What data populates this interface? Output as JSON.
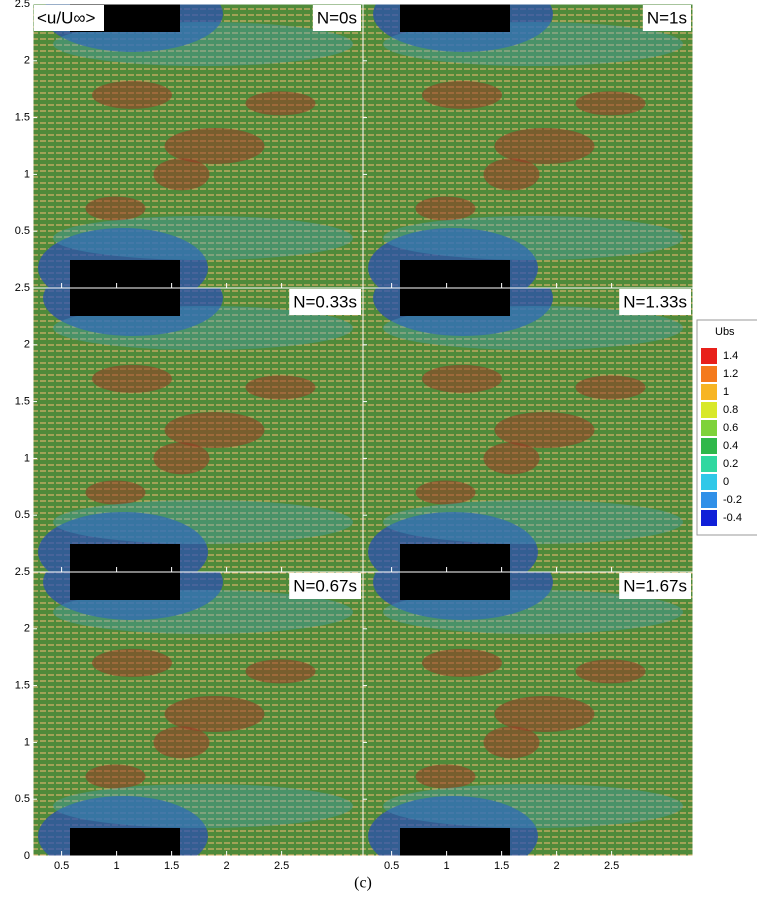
{
  "chart_data": {
    "type": "vector-field",
    "annotation": "<u/U∞>",
    "caption": "(c)",
    "panels": [
      {
        "label": "N=0s"
      },
      {
        "label": "N=1s"
      },
      {
        "label": "N=0.33s"
      },
      {
        "label": "N=1.33s"
      },
      {
        "label": "N=0.67s"
      },
      {
        "label": "N=1.67s"
      }
    ],
    "xlim": [
      0.24,
      3.24
    ],
    "xticks": [
      0.5,
      1,
      1.5,
      2,
      2.5
    ],
    "ylim": [
      0,
      2.5
    ],
    "yticks": [
      0,
      0.5,
      1,
      1.5,
      2,
      2.5
    ],
    "colorbar": {
      "title": "Ubs",
      "levels": [
        1.4,
        1.2,
        1,
        0.8,
        0.6,
        0.4,
        0.2,
        0,
        -0.2,
        -0.4
      ],
      "colors": [
        "#e8201a",
        "#f47a1c",
        "#f7b523",
        "#d8e82a",
        "#7ed23a",
        "#2fb84a",
        "#30d8a0",
        "#30c8e8",
        "#3090e8",
        "#1020d8"
      ]
    }
  }
}
